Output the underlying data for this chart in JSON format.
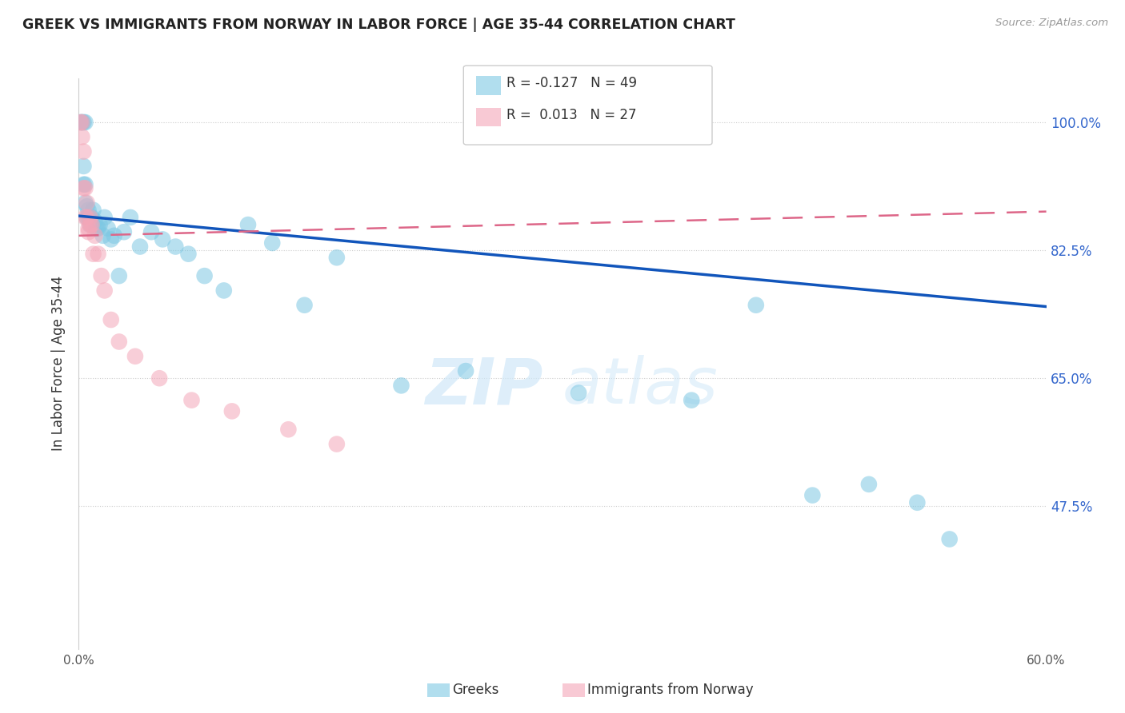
{
  "title": "GREEK VS IMMIGRANTS FROM NORWAY IN LABOR FORCE | AGE 35-44 CORRELATION CHART",
  "source": "Source: ZipAtlas.com",
  "ylabel_label": "In Labor Force | Age 35-44",
  "xlim": [
    0.0,
    0.6
  ],
  "ylim": [
    0.28,
    1.06
  ],
  "xticks": [
    0.0,
    0.1,
    0.2,
    0.3,
    0.4,
    0.5,
    0.6
  ],
  "xticklabels": [
    "0.0%",
    "",
    "",
    "",
    "",
    "",
    "60.0%"
  ],
  "yticks": [
    0.475,
    0.65,
    0.825,
    1.0
  ],
  "yticklabels": [
    "47.5%",
    "65.0%",
    "82.5%",
    "100.0%"
  ],
  "legend_blue_label": "Greeks",
  "legend_pink_label": "Immigrants from Norway",
  "R_blue": -0.127,
  "N_blue": 49,
  "R_pink": 0.013,
  "N_pink": 27,
  "blue_color": "#7ec8e3",
  "pink_color": "#f4a6b8",
  "blue_line_color": "#1155bb",
  "pink_line_color": "#dd6688",
  "watermark_zip": "ZIP",
  "watermark_atlas": "atlas",
  "blue_trend_x": [
    0.0,
    0.6
  ],
  "blue_trend_y": [
    0.872,
    0.748
  ],
  "pink_trend_x": [
    0.0,
    0.6
  ],
  "pink_trend_y": [
    0.845,
    0.878
  ],
  "blue_points_x": [
    0.001,
    0.002,
    0.002,
    0.003,
    0.003,
    0.003,
    0.004,
    0.004,
    0.004,
    0.005,
    0.005,
    0.006,
    0.006,
    0.007,
    0.007,
    0.008,
    0.009,
    0.01,
    0.011,
    0.012,
    0.013,
    0.015,
    0.016,
    0.018,
    0.02,
    0.022,
    0.025,
    0.028,
    0.032,
    0.038,
    0.045,
    0.052,
    0.06,
    0.068,
    0.078,
    0.09,
    0.105,
    0.12,
    0.14,
    0.16,
    0.2,
    0.24,
    0.31,
    0.38,
    0.42,
    0.455,
    0.49,
    0.52,
    0.54
  ],
  "blue_points_y": [
    1.0,
    1.0,
    1.0,
    1.0,
    0.94,
    0.915,
    1.0,
    0.915,
    0.89,
    0.87,
    0.885,
    0.88,
    0.87,
    0.86,
    0.87,
    0.87,
    0.88,
    0.865,
    0.855,
    0.855,
    0.86,
    0.845,
    0.87,
    0.855,
    0.84,
    0.845,
    0.79,
    0.85,
    0.87,
    0.83,
    0.85,
    0.84,
    0.83,
    0.82,
    0.79,
    0.77,
    0.86,
    0.835,
    0.75,
    0.815,
    0.64,
    0.66,
    0.63,
    0.62,
    0.75,
    0.49,
    0.505,
    0.48,
    0.43
  ],
  "pink_points_x": [
    0.001,
    0.002,
    0.002,
    0.003,
    0.003,
    0.004,
    0.004,
    0.005,
    0.005,
    0.006,
    0.006,
    0.007,
    0.007,
    0.008,
    0.009,
    0.01,
    0.012,
    0.014,
    0.016,
    0.02,
    0.025,
    0.035,
    0.05,
    0.07,
    0.095,
    0.13,
    0.16
  ],
  "pink_points_y": [
    1.0,
    1.0,
    0.98,
    0.96,
    0.91,
    0.91,
    0.87,
    0.89,
    0.87,
    0.85,
    0.855,
    0.87,
    0.86,
    0.86,
    0.82,
    0.845,
    0.82,
    0.79,
    0.77,
    0.73,
    0.7,
    0.68,
    0.65,
    0.62,
    0.605,
    0.58,
    0.56
  ]
}
